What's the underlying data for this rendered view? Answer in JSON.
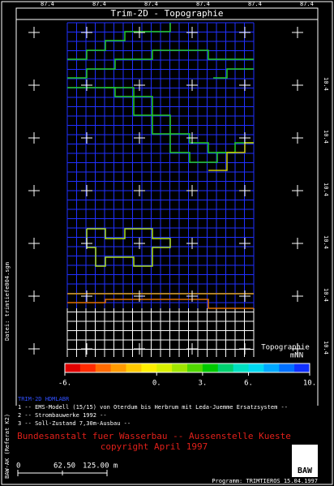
{
  "chart_data": {
    "type": "colorbar",
    "title": "Trim-2D - Topographie",
    "quantity": "Topographie",
    "unit": "mNN",
    "clim": [
      -6,
      10
    ],
    "cticks": [
      {
        "value": -6,
        "label": "-6."
      },
      {
        "value": 0,
        "label": "0."
      },
      {
        "value": 3,
        "label": "3."
      },
      {
        "value": 6,
        "label": "6."
      },
      {
        "value": 10,
        "label": "10."
      }
    ],
    "colors": [
      "#e00000",
      "#ff2a00",
      "#ff6a00",
      "#ff9a00",
      "#ffc800",
      "#ffee00",
      "#d8f000",
      "#a0e600",
      "#50d800",
      "#00c800",
      "#00d070",
      "#00e0c0",
      "#00d8f0",
      "#00a8ff",
      "#0070ff",
      "#1030ff"
    ],
    "top_labels": [
      "87.4",
      "87.4",
      "87.4",
      "87.4",
      "87.4",
      "87.4"
    ],
    "right_labels": [
      "10.4",
      "10.4",
      "10.4",
      "10.4",
      "10.4",
      "10.4"
    ],
    "legend_title": "TRIM-2D  HDMLABR",
    "legend_lines": [
      "1 -- EMS-Modell (15/15) von Oterdum bis Herbrum mit Leda-Juemme Ersatzsystem --",
      "2 -- Strombauwerke 1992 --",
      "3 -- Soll-Zustand 7,30m-Ausbau --"
    ],
    "institution": [
      "Bundesanstalt fuer Wasserbau -- Aussenstelle Kueste",
      "copyright April 1997"
    ],
    "scale_labels": [
      "0",
      "62.50",
      "125.00 m"
    ],
    "logo": "BAW",
    "program": "Programm: TRIMTIEROS 15.04.1997",
    "side_labels": [
      "Datei: trimtiefe004.sgm",
      "BAW-AK (Referat K2)"
    ]
  }
}
